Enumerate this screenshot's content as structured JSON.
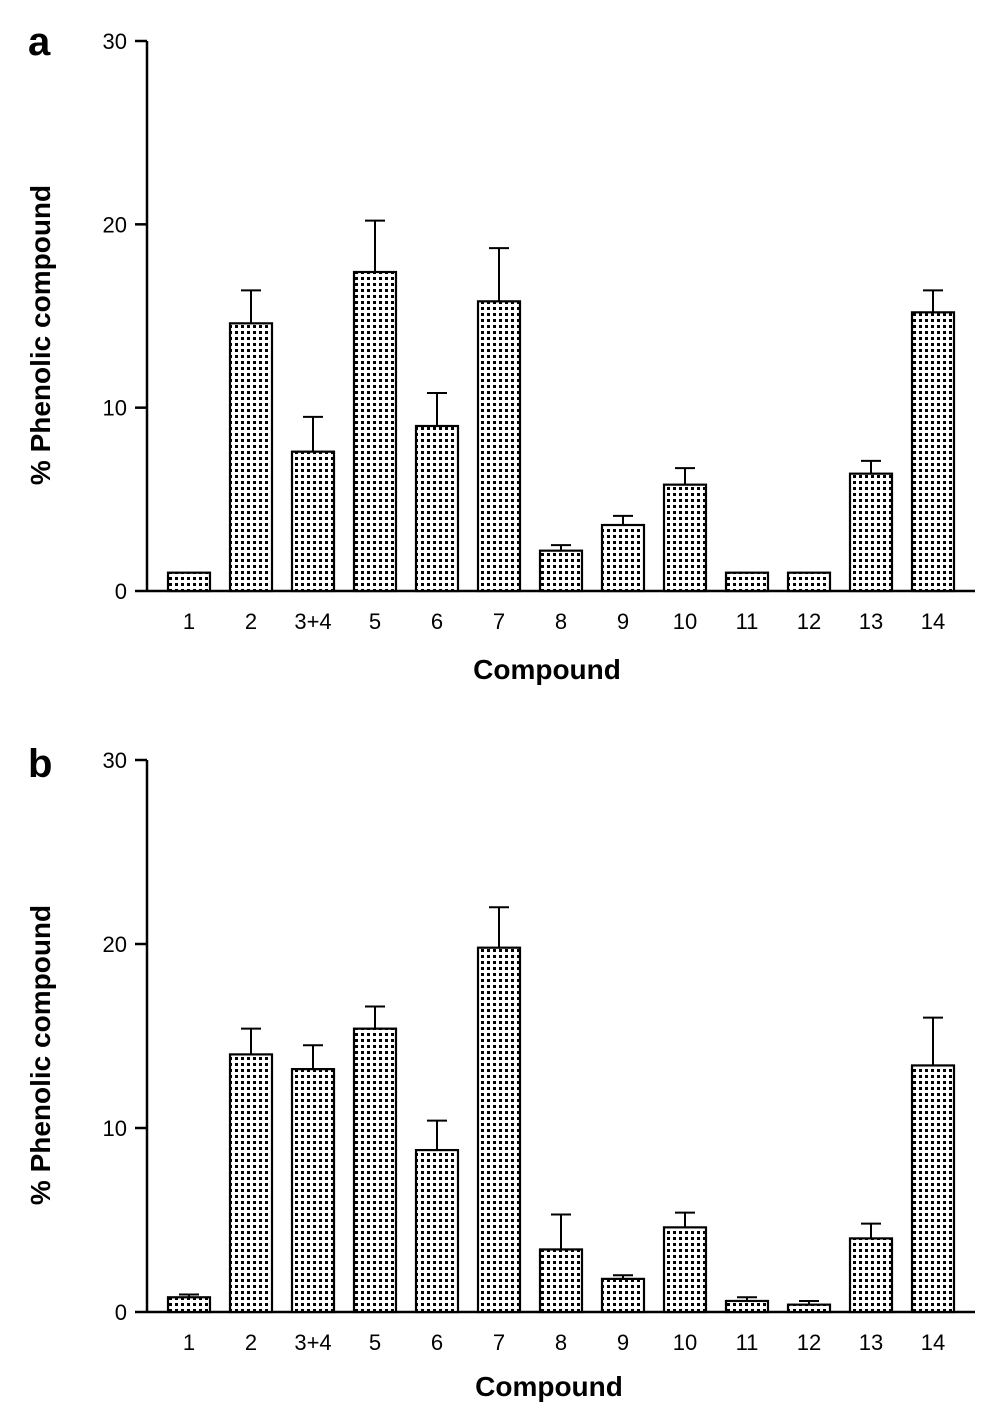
{
  "chart_data": [
    {
      "type": "bar",
      "panel": "a",
      "categories": [
        "1",
        "2",
        "3+4",
        "5",
        "6",
        "7",
        "8",
        "9",
        "10",
        "11",
        "12",
        "13",
        "14"
      ],
      "values": [
        1.0,
        14.6,
        7.6,
        17.4,
        9.0,
        15.8,
        2.2,
        3.6,
        5.8,
        1.0,
        1.0,
        6.4,
        15.2
      ],
      "errors": [
        0,
        1.8,
        1.9,
        2.8,
        1.8,
        2.9,
        0.3,
        0.5,
        0.9,
        0,
        0,
        0.7,
        1.2
      ],
      "xlabel": "Compound",
      "ylabel": "% Phenolic compound",
      "ylim": [
        0,
        30
      ],
      "yticks": [
        0,
        10,
        20,
        30
      ],
      "fill": "dotted"
    },
    {
      "type": "bar",
      "panel": "b",
      "categories": [
        "1",
        "2",
        "3+4",
        "5",
        "6",
        "7",
        "8",
        "9",
        "10",
        "11",
        "12",
        "13",
        "14"
      ],
      "values": [
        0.8,
        14.0,
        13.2,
        15.4,
        8.8,
        19.8,
        3.4,
        1.8,
        4.6,
        0.6,
        0.4,
        4.0,
        13.4
      ],
      "errors": [
        0.15,
        1.4,
        1.3,
        1.2,
        1.6,
        2.2,
        1.9,
        0.2,
        0.8,
        0.2,
        0.2,
        0.8,
        2.6
      ],
      "xlabel": "Compound",
      "ylabel": "% Phenolic compound",
      "ylim": [
        0,
        30
      ],
      "yticks": [
        0,
        10,
        20,
        30
      ],
      "fill": "dotted"
    }
  ],
  "colors": {
    "bar_fill_dot": "#000000",
    "bar_bg": "#ffffff",
    "axis": "#000000"
  }
}
